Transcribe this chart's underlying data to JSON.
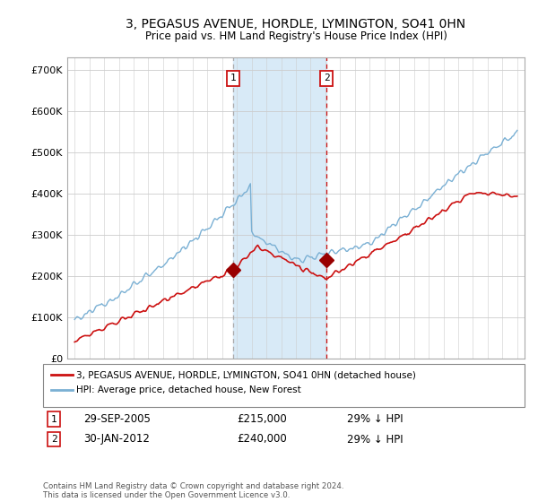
{
  "title": "3, PEGASUS AVENUE, HORDLE, LYMINGTON, SO41 0HN",
  "subtitle": "Price paid vs. HM Land Registry's House Price Index (HPI)",
  "hpi_label": "HPI: Average price, detached house, New Forest",
  "price_label": "3, PEGASUS AVENUE, HORDLE, LYMINGTON, SO41 0HN (detached house)",
  "copyright": "Contains HM Land Registry data © Crown copyright and database right 2024.\nThis data is licensed under the Open Government Licence v3.0.",
  "point1_date": 2005.75,
  "point1_price": 215000,
  "point2_date": 2012.08,
  "point2_price": 240000,
  "ylim": [
    0,
    730000
  ],
  "xlim": [
    1994.5,
    2025.5
  ],
  "hpi_color": "#7ab0d4",
  "price_color": "#cc1111",
  "vline1_color": "#aaaaaa",
  "vline2_color": "#cc1111",
  "bg_span_color": "#d8eaf7",
  "yticks": [
    0,
    100000,
    200000,
    300000,
    400000,
    500000,
    600000,
    700000
  ],
  "ytick_labels": [
    "£0",
    "£100K",
    "£200K",
    "£300K",
    "£400K",
    "£500K",
    "£600K",
    "£700K"
  ],
  "figsize": [
    6.0,
    5.6
  ],
  "dpi": 100
}
